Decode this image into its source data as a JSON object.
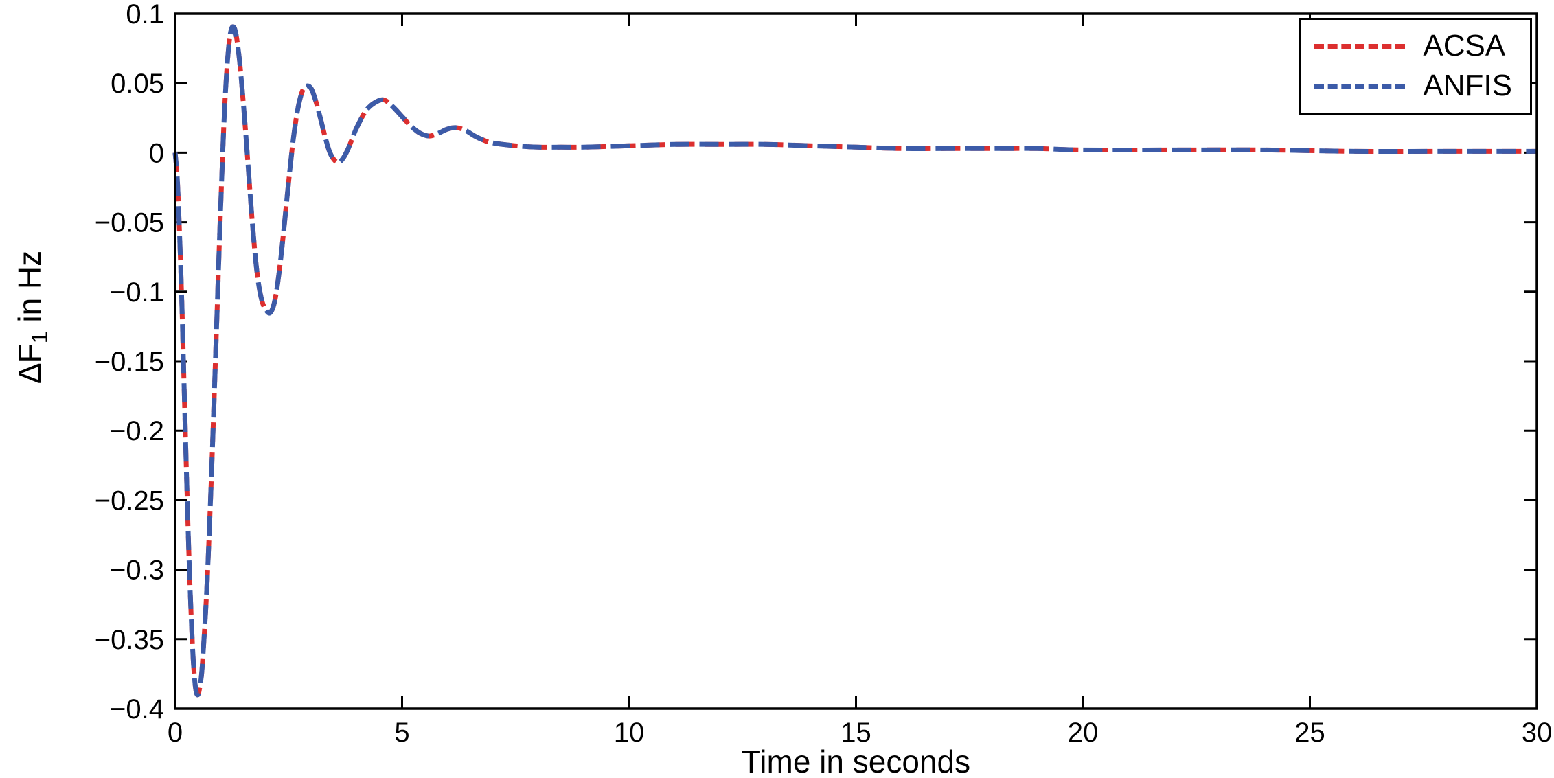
{
  "figure": {
    "background": "#ffffff",
    "axis_color": "#000000"
  },
  "chart_data": {
    "type": "line",
    "title": "",
    "xlabel": "Time in seconds",
    "ylabel": "ΔF1 in Hz",
    "ylabel_parts": {
      "prefix": "ΔF",
      "sub": "1",
      "suffix": " in Hz"
    },
    "xlim": [
      0,
      30
    ],
    "ylim": [
      -0.4,
      0.1
    ],
    "grid": false,
    "legend_position": "top-right",
    "line_style": "dashed",
    "xticks": {
      "values": [
        0,
        5,
        10,
        15,
        20,
        25,
        30
      ],
      "labels": [
        "0",
        "5",
        "10",
        "15",
        "20",
        "25",
        "30"
      ]
    },
    "yticks": {
      "values": [
        0.1,
        0.05,
        0,
        -0.05,
        -0.1,
        -0.15,
        -0.2,
        -0.25,
        -0.3,
        -0.35,
        -0.4
      ],
      "labels": [
        "0.1",
        "0.05",
        "0",
        "−0.05",
        "−0.1",
        "−0.15",
        "−0.2",
        "−0.25",
        "−0.3",
        "−0.35",
        "−0.4"
      ]
    },
    "x": [
      0,
      0.05,
      0.1,
      0.15,
      0.2,
      0.25,
      0.3,
      0.35,
      0.4,
      0.45,
      0.5,
      0.55,
      0.6,
      0.7,
      0.8,
      0.9,
      1,
      1.1,
      1.2,
      1.3,
      1.4,
      1.5,
      1.6,
      1.7,
      1.8,
      1.9,
      2,
      2.1,
      2.2,
      2.3,
      2.4,
      2.5,
      2.6,
      2.7,
      2.8,
      2.9,
      3,
      3.1,
      3.2,
      3.3,
      3.4,
      3.5,
      3.6,
      3.7,
      3.8,
      3.9,
      4,
      4.2,
      4.4,
      4.6,
      4.8,
      5,
      5.2,
      5.4,
      5.6,
      5.8,
      6,
      6.2,
      6.4,
      6.6,
      6.8,
      7,
      7.5,
      8,
      8.5,
      9,
      10,
      11,
      12,
      13,
      14,
      15,
      16,
      17,
      18,
      19,
      20,
      22,
      24,
      26,
      28,
      30
    ],
    "series": [
      {
        "name": "ACSA",
        "color": "#dc2f2f",
        "values": [
          0,
          -0.02,
          -0.06,
          -0.11,
          -0.17,
          -0.23,
          -0.285,
          -0.33,
          -0.365,
          -0.385,
          -0.39,
          -0.383,
          -0.368,
          -0.312,
          -0.232,
          -0.138,
          -0.042,
          0.038,
          0.082,
          0.09,
          0.072,
          0.037,
          -0.006,
          -0.05,
          -0.085,
          -0.105,
          -0.113,
          -0.115,
          -0.106,
          -0.084,
          -0.054,
          -0.021,
          0.009,
          0.031,
          0.044,
          0.048,
          0.046,
          0.037,
          0.025,
          0.012,
          0.001,
          -0.005,
          -0.007,
          -0.004,
          0.002,
          0.01,
          0.018,
          0.03,
          0.036,
          0.038,
          0.033,
          0.026,
          0.019,
          0.014,
          0.012,
          0.014,
          0.017,
          0.018,
          0.016,
          0.012,
          0.009,
          0.007,
          0.005,
          0.004,
          0.004,
          0.004,
          0.005,
          0.006,
          0.006,
          0.006,
          0.005,
          0.004,
          0.003,
          0.003,
          0.003,
          0.003,
          0.002,
          0.002,
          0.002,
          0.001,
          0.001,
          0.001
        ]
      },
      {
        "name": "ANFIS",
        "color": "#3c5ba8",
        "values": [
          0,
          -0.02,
          -0.06,
          -0.11,
          -0.17,
          -0.23,
          -0.285,
          -0.33,
          -0.365,
          -0.385,
          -0.39,
          -0.383,
          -0.368,
          -0.312,
          -0.232,
          -0.138,
          -0.042,
          0.038,
          0.082,
          0.09,
          0.072,
          0.037,
          -0.006,
          -0.05,
          -0.085,
          -0.105,
          -0.113,
          -0.115,
          -0.106,
          -0.084,
          -0.054,
          -0.021,
          0.009,
          0.031,
          0.044,
          0.048,
          0.046,
          0.037,
          0.025,
          0.012,
          0.001,
          -0.005,
          -0.007,
          -0.004,
          0.002,
          0.01,
          0.018,
          0.03,
          0.036,
          0.038,
          0.033,
          0.026,
          0.019,
          0.014,
          0.012,
          0.014,
          0.017,
          0.018,
          0.016,
          0.012,
          0.009,
          0.007,
          0.005,
          0.004,
          0.004,
          0.004,
          0.005,
          0.006,
          0.006,
          0.006,
          0.005,
          0.004,
          0.003,
          0.003,
          0.003,
          0.003,
          0.002,
          0.002,
          0.002,
          0.001,
          0.001,
          0.001
        ]
      }
    ]
  }
}
